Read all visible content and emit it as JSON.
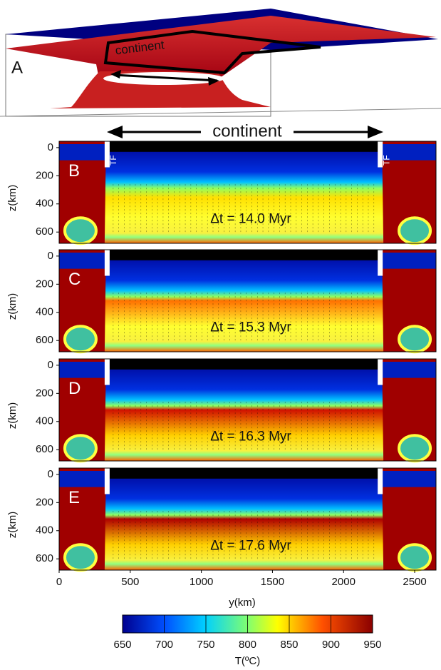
{
  "panel_a": {
    "label": "A",
    "annotation": "continent"
  },
  "top_annotation": "continent",
  "tf_label": "TF",
  "panels": [
    {
      "label": "B",
      "time": "Δt = 14.0 Myr"
    },
    {
      "label": "C",
      "time": "Δt = 15.3 Myr"
    },
    {
      "label": "D",
      "time": "Δt = 16.3 Myr"
    },
    {
      "label": "E",
      "time": "Δt = 17.6 Myr"
    }
  ],
  "x_label": "y(km)",
  "y_label": "z(km)",
  "xlim": [
    0,
    2650
  ],
  "xticks": [
    0,
    500,
    1000,
    1500,
    2000,
    2500
  ],
  "ylim": [
    -45,
    680
  ],
  "yticks": [
    0,
    200,
    400,
    600
  ],
  "colorbar": {
    "label": "T(ºC)",
    "lim": [
      650,
      950
    ],
    "ticks": [
      650,
      700,
      750,
      800,
      850,
      900,
      950
    ]
  }
}
